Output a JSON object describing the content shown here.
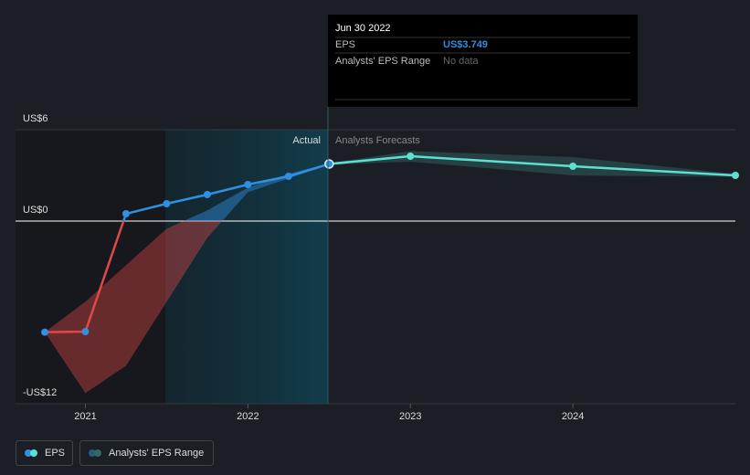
{
  "chart_data": {
    "type": "line",
    "series": [
      {
        "name": "EPS",
        "color": "#2f8fe0",
        "negative_color": "#e04848",
        "x": [
          2020.75,
          2021.0,
          2021.25,
          2021.5,
          2021.75,
          2022.0,
          2022.25,
          2022.5
        ],
        "values": [
          -7.3,
          -7.26,
          0.48,
          1.14,
          1.74,
          2.4,
          2.94,
          3.749
        ]
      }
    ],
    "forecast": {
      "color": "#5ce0d0",
      "x": [
        2022.5,
        2023.0,
        2024.0,
        2025.0
      ],
      "values": [
        3.749,
        4.26,
        3.6,
        3.0
      ]
    },
    "range": {
      "name": "Analysts' EPS Range",
      "x": [
        2020.75,
        2021.0,
        2021.25,
        2021.5,
        2021.75,
        2022.0,
        2022.25,
        2022.5,
        2023.0,
        2024.0,
        2025.0
      ],
      "low": [
        -7.3,
        -11.3,
        -9.5,
        -5.3,
        -1.1,
        1.9,
        2.8,
        3.7,
        3.9,
        3.0,
        2.9
      ],
      "high": [
        -7.3,
        -5.3,
        -2.9,
        -0.5,
        0.7,
        2.2,
        3.1,
        3.8,
        4.6,
        4.2,
        3.1
      ]
    },
    "actual_label": "Actual",
    "forecast_label": "Analysts Forecasts",
    "xlim": [
      2020.57,
      2025.0
    ],
    "xticks": [
      2021,
      2022,
      2023,
      2024
    ],
    "ylim": [
      -12,
      6
    ],
    "yticks": [
      {
        "value": 6,
        "label": "US$6"
      },
      {
        "value": 0,
        "label": "US$0"
      },
      {
        "value": -12,
        "label": "-US$12"
      }
    ],
    "tooltip": {
      "date": "Jun 30 2022",
      "rows": [
        {
          "label": "EPS",
          "value": "US$3.749"
        },
        {
          "label": "Analysts' EPS Range",
          "value": "No data"
        }
      ]
    }
  }
}
